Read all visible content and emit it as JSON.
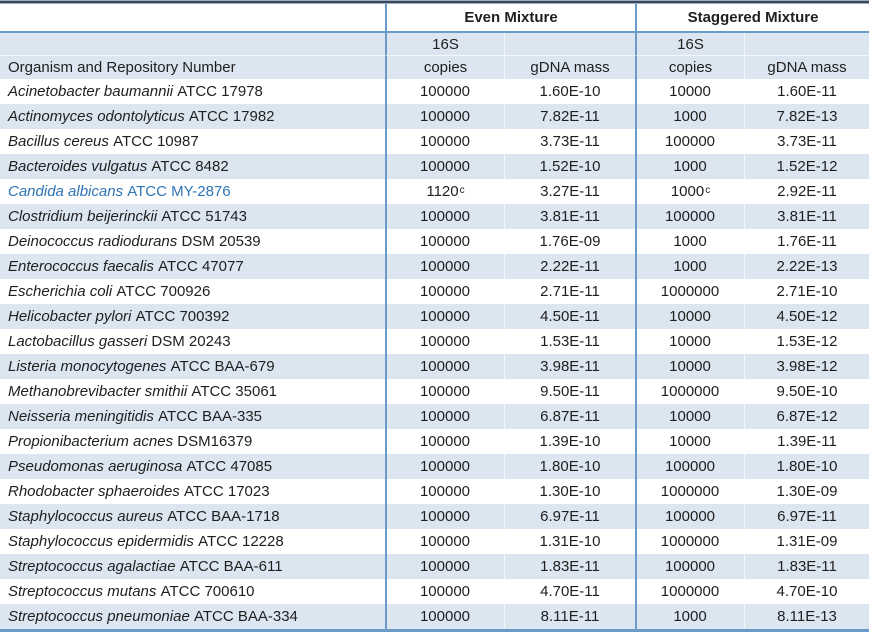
{
  "table": {
    "group_headers": [
      {
        "label": "Even Mixture"
      },
      {
        "label": "Staggered Mixture"
      }
    ],
    "column_headers": {
      "organism": "Organism and Repository Number",
      "copies_line1": "16S",
      "copies_line2": "copies",
      "gdna": "gDNA mass"
    },
    "colors": {
      "stripe": "#DCE6F1",
      "grid_blue": "#6B9CC9",
      "highlight_text": "#2E75B6"
    },
    "rows": [
      {
        "name": "Acinetobacter baumannii",
        "repo": "ATCC 17978",
        "even_copies": "100000",
        "even_gdna": "1.60E-10",
        "stag_copies": "10000",
        "stag_gdna": "1.60E-11",
        "highlight": false
      },
      {
        "name": "Actinomyces odontolyticus",
        "repo": "ATCC 17982",
        "even_copies": "100000",
        "even_gdna": "7.82E-11",
        "stag_copies": "1000",
        "stag_gdna": "7.82E-13",
        "highlight": false
      },
      {
        "name": "Bacillus cereus",
        "repo": "ATCC 10987",
        "even_copies": "100000",
        "even_gdna": "3.73E-11",
        "stag_copies": "100000",
        "stag_gdna": "3.73E-11",
        "highlight": false
      },
      {
        "name": "Bacteroides vulgatus",
        "repo": "ATCC 8482",
        "even_copies": "100000",
        "even_gdna": "1.52E-10",
        "stag_copies": "1000",
        "stag_gdna": "1.52E-12",
        "highlight": false
      },
      {
        "name": "Candida albicans",
        "repo": "ATCC MY-2876",
        "even_copies": "1120",
        "even_copies_sup": "c",
        "even_gdna": "3.27E-11",
        "stag_copies": "1000",
        "stag_copies_sup": "c",
        "stag_gdna": "2.92E-11",
        "highlight": true
      },
      {
        "name": "Clostridium beijerinckii",
        "repo": "ATCC 51743",
        "even_copies": "100000",
        "even_gdna": "3.81E-11",
        "stag_copies": "100000",
        "stag_gdna": "3.81E-11",
        "highlight": false
      },
      {
        "name": "Deinococcus radiodurans",
        "repo": "DSM 20539",
        "even_copies": "100000",
        "even_gdna": "1.76E-09",
        "stag_copies": "1000",
        "stag_gdna": "1.76E-11",
        "highlight": false
      },
      {
        "name": "Enterococcus faecalis",
        "repo": "ATCC 47077",
        "even_copies": "100000",
        "even_gdna": "2.22E-11",
        "stag_copies": "1000",
        "stag_gdna": "2.22E-13",
        "highlight": false
      },
      {
        "name": "Escherichia coli",
        "repo": "ATCC 700926",
        "even_copies": "100000",
        "even_gdna": "2.71E-11",
        "stag_copies": "1000000",
        "stag_gdna": "2.71E-10",
        "highlight": false
      },
      {
        "name": "Helicobacter pylori",
        "repo": "ATCC 700392",
        "even_copies": "100000",
        "even_gdna": "4.50E-11",
        "stag_copies": "10000",
        "stag_gdna": "4.50E-12",
        "highlight": false
      },
      {
        "name": "Lactobacillus gasseri",
        "repo": "DSM 20243",
        "even_copies": "100000",
        "even_gdna": "1.53E-11",
        "stag_copies": "10000",
        "stag_gdna": "1.53E-12",
        "highlight": false
      },
      {
        "name": "Listeria monocytogenes",
        "repo": "ATCC BAA-679",
        "even_copies": "100000",
        "even_gdna": "3.98E-11",
        "stag_copies": "10000",
        "stag_gdna": "3.98E-12",
        "highlight": false
      },
      {
        "name": "Methanobrevibacter smithii",
        "repo": "ATCC 35061",
        "even_copies": "100000",
        "even_gdna": "9.50E-11",
        "stag_copies": "1000000",
        "stag_gdna": "9.50E-10",
        "highlight": false
      },
      {
        "name": "Neisseria meningitidis",
        "repo": "ATCC BAA-335",
        "even_copies": "100000",
        "even_gdna": "6.87E-11",
        "stag_copies": "10000",
        "stag_gdna": "6.87E-12",
        "highlight": false
      },
      {
        "name": "Propionibacterium acnes",
        "repo": "DSM16379",
        "even_copies": "100000",
        "even_gdna": "1.39E-10",
        "stag_copies": "10000",
        "stag_gdna": "1.39E-11",
        "highlight": false
      },
      {
        "name": "Pseudomonas aeruginosa",
        "repo": "ATCC 47085",
        "even_copies": "100000",
        "even_gdna": "1.80E-10",
        "stag_copies": "100000",
        "stag_gdna": "1.80E-10",
        "highlight": false
      },
      {
        "name": "Rhodobacter sphaeroides",
        "repo": "ATCC 17023",
        "even_copies": "100000",
        "even_gdna": "1.30E-10",
        "stag_copies": "1000000",
        "stag_gdna": "1.30E-09",
        "highlight": false
      },
      {
        "name": "Staphylococcus aureus",
        "repo": "ATCC BAA-1718",
        "even_copies": "100000",
        "even_gdna": "6.97E-11",
        "stag_copies": "100000",
        "stag_gdna": "6.97E-11",
        "highlight": false
      },
      {
        "name": "Staphylococcus epidermidis",
        "repo": "ATCC 12228",
        "even_copies": "100000",
        "even_gdna": "1.31E-10",
        "stag_copies": "1000000",
        "stag_gdna": "1.31E-09",
        "highlight": false
      },
      {
        "name": "Streptococcus agalactiae",
        "repo": "ATCC BAA-611",
        "even_copies": "100000",
        "even_gdna": "1.83E-11",
        "stag_copies": "100000",
        "stag_gdna": "1.83E-11",
        "highlight": false
      },
      {
        "name": "Streptococcus mutans",
        "repo": "ATCC 700610",
        "even_copies": "100000",
        "even_gdna": "4.70E-11",
        "stag_copies": "1000000",
        "stag_gdna": "4.70E-10",
        "highlight": false
      },
      {
        "name": "Streptococcus pneumoniae",
        "repo": "ATCC BAA-334",
        "even_copies": "100000",
        "even_gdna": "8.11E-11",
        "stag_copies": "1000",
        "stag_gdna": "8.11E-13",
        "highlight": false
      }
    ]
  }
}
